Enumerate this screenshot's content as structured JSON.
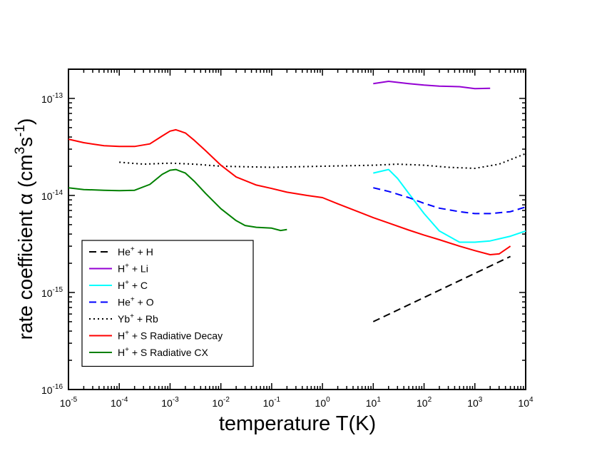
{
  "chart_data": {
    "type": "line",
    "xscale": "log",
    "yscale": "log",
    "xlabel": "temperature T(K)",
    "ylabel": {
      "main": "rate coefficient α (cm",
      "exp1": "3",
      "mid": "s",
      "exp2": "-1",
      "close": ")"
    },
    "xlim": [
      1e-05,
      10000.0
    ],
    "ylim": [
      1e-16,
      2e-13
    ],
    "x_ticks": [
      {
        "base": "10",
        "exp": "-5",
        "value": 1e-05
      },
      {
        "base": "10",
        "exp": "-4",
        "value": 0.0001
      },
      {
        "base": "10",
        "exp": "-3",
        "value": 0.001
      },
      {
        "base": "10",
        "exp": "-2",
        "value": 0.01
      },
      {
        "base": "10",
        "exp": "-1",
        "value": 0.1
      },
      {
        "base": "10",
        "exp": "0",
        "value": 1
      },
      {
        "base": "10",
        "exp": "1",
        "value": 10
      },
      {
        "base": "10",
        "exp": "2",
        "value": 100
      },
      {
        "base": "10",
        "exp": "3",
        "value": 1000
      },
      {
        "base": "10",
        "exp": "4",
        "value": 10000
      }
    ],
    "y_ticks": [
      {
        "base": "10",
        "exp": "-16",
        "value": 1e-16
      },
      {
        "base": "10",
        "exp": "-15",
        "value": 1e-15
      },
      {
        "base": "10",
        "exp": "-14",
        "value": 1e-14
      },
      {
        "base": "10",
        "exp": "-13",
        "value": 1e-13
      }
    ],
    "legend_position": "bottom-left",
    "series": [
      {
        "name": "He+ + H",
        "label": {
          "ion": "He",
          "sup": "+",
          "rest": " + H"
        },
        "color": "#000000",
        "dash": "dashed",
        "x": [
          10,
          5000
        ],
        "y": [
          5e-16,
          2.35e-15
        ]
      },
      {
        "name": "H+ + Li",
        "label": {
          "ion": "H",
          "sup": "+",
          "rest": " + Li"
        },
        "color": "#9400d3",
        "dash": "solid",
        "x": [
          10,
          20,
          50,
          100,
          200,
          500,
          1000,
          2000
        ],
        "y": [
          1.42e-13,
          1.5e-13,
          1.42e-13,
          1.37e-13,
          1.34e-13,
          1.32e-13,
          1.26e-13,
          1.27e-13
        ]
      },
      {
        "name": "H+ + C",
        "label": {
          "ion": "H",
          "sup": "+",
          "rest": " + C"
        },
        "color": "#00ffff",
        "dash": "solid",
        "x": [
          10,
          20,
          30,
          50,
          100,
          200,
          500,
          1000,
          2000,
          5000,
          10000
        ],
        "y": [
          1.7e-14,
          1.85e-14,
          1.5e-14,
          1.05e-14,
          6.5e-15,
          4.3e-15,
          3.3e-15,
          3.3e-15,
          3.4e-15,
          3.8e-15,
          4.3e-15
        ]
      },
      {
        "name": "He+ + O",
        "label": {
          "ion": "He",
          "sup": "+",
          "rest": " + O"
        },
        "color": "#0000ff",
        "dash": "dashed",
        "x": [
          10,
          20,
          50,
          100,
          200,
          500,
          1000,
          2000,
          5000,
          10000
        ],
        "y": [
          1.2e-14,
          1.1e-14,
          9.5e-15,
          8.3e-15,
          7.4e-15,
          6.8e-15,
          6.5e-15,
          6.5e-15,
          6.8e-15,
          7.6e-15
        ]
      },
      {
        "name": "Yb+ + Rb",
        "label": {
          "ion": "Yb",
          "sup": "+",
          "rest": " + Rb"
        },
        "color": "#000000",
        "dash": "dotted",
        "x": [
          0.0001,
          0.0003,
          0.001,
          0.003,
          0.01,
          0.1,
          1,
          10,
          30,
          100,
          300,
          1000,
          3000,
          10000
        ],
        "y": [
          2.2e-14,
          2.1e-14,
          2.15e-14,
          2.1e-14,
          2e-14,
          1.95e-14,
          2e-14,
          2.05e-14,
          2.1e-14,
          2.05e-14,
          1.95e-14,
          1.9e-14,
          2.1e-14,
          2.7e-14
        ]
      },
      {
        "name": "H+ + S Radiative Decay",
        "label": {
          "ion": "H",
          "sup": "+",
          "rest": " + S Radiative Decay"
        },
        "color": "#ff0000",
        "dash": "solid",
        "x": [
          1e-05,
          2e-05,
          5e-05,
          0.0001,
          0.0002,
          0.0004,
          0.0007,
          0.001,
          0.0013,
          0.002,
          0.003,
          0.005,
          0.01,
          0.02,
          0.05,
          0.1,
          0.2,
          0.5,
          1,
          2,
          5,
          10,
          20,
          50,
          100,
          200,
          500,
          1000,
          2000,
          3000,
          5000
        ],
        "y": [
          3.8e-14,
          3.5e-14,
          3.25e-14,
          3.2e-14,
          3.2e-14,
          3.4e-14,
          4.1e-14,
          4.6e-14,
          4.75e-14,
          4.4e-14,
          3.7e-14,
          2.9e-14,
          2.05e-14,
          1.55e-14,
          1.28e-14,
          1.18e-14,
          1.08e-14,
          1e-14,
          9.5e-15,
          8.2e-15,
          6.8e-15,
          5.9e-15,
          5.2e-15,
          4.4e-15,
          3.9e-15,
          3.5e-15,
          3e-15,
          2.7e-15,
          2.45e-15,
          2.5e-15,
          3e-15
        ]
      },
      {
        "name": "H+ + S Radiative CX",
        "label": {
          "ion": "H",
          "sup": "+",
          "rest": " + S Radiative CX"
        },
        "color": "#008000",
        "dash": "solid",
        "x": [
          1e-05,
          2e-05,
          5e-05,
          0.0001,
          0.0002,
          0.0004,
          0.0007,
          0.001,
          0.0013,
          0.002,
          0.003,
          0.005,
          0.01,
          0.02,
          0.03,
          0.05,
          0.1,
          0.15,
          0.2
        ],
        "y": [
          1.2e-14,
          1.15e-14,
          1.13e-14,
          1.12e-14,
          1.13e-14,
          1.3e-14,
          1.65e-14,
          1.82e-14,
          1.85e-14,
          1.7e-14,
          1.4e-14,
          1.05e-14,
          7.3e-15,
          5.5e-15,
          4.9e-15,
          4.7e-15,
          4.6e-15,
          4.35e-15,
          4.45e-15
        ]
      }
    ]
  }
}
